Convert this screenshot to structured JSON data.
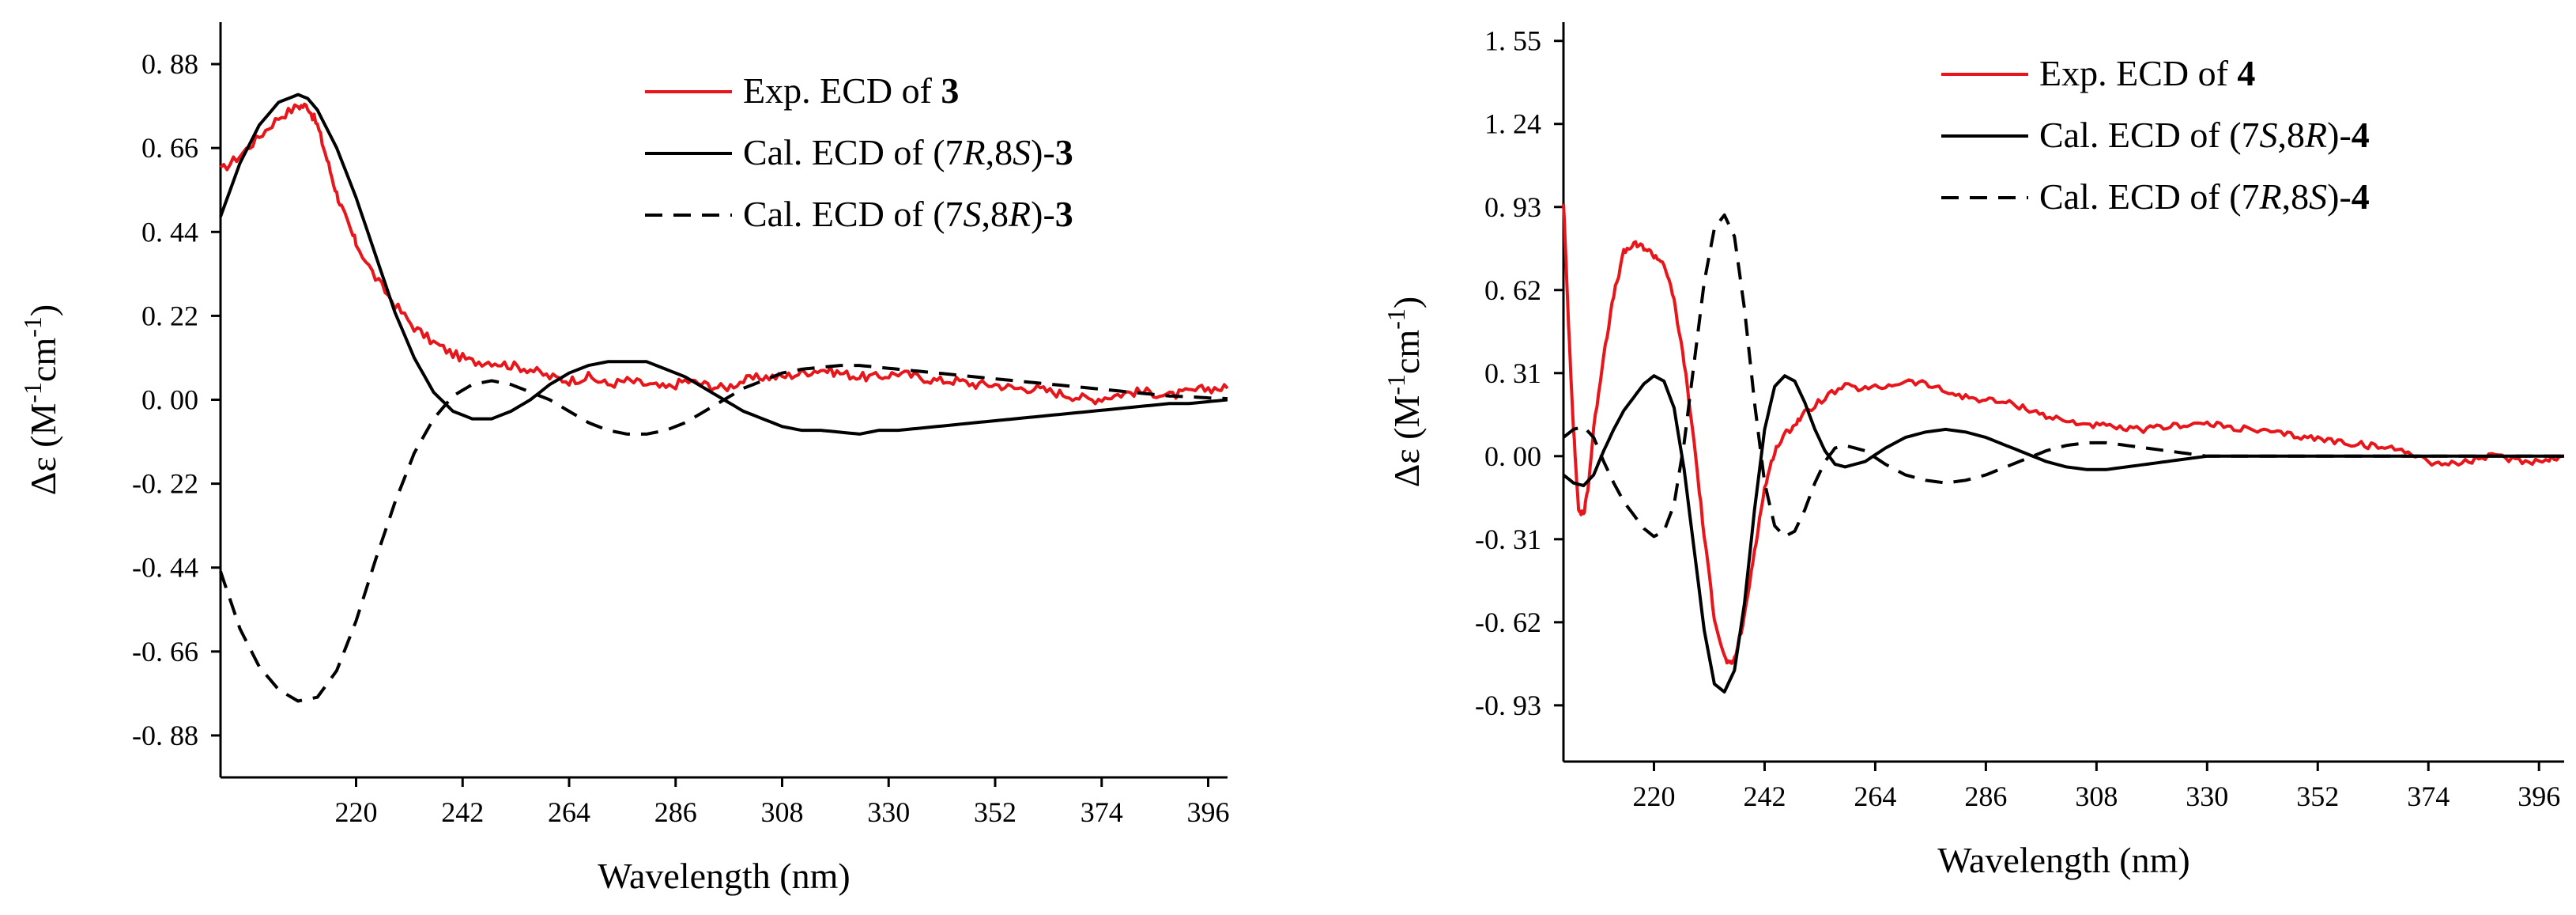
{
  "chart_data": [
    {
      "type": "line",
      "xlabel": "Wavelength (nm)",
      "ylabel": "Δε (M-1cm-1)",
      "xlim": [
        192,
        400
      ],
      "ylim": [
        -0.99,
        0.99
      ],
      "xticks": [
        220,
        242,
        264,
        286,
        308,
        330,
        352,
        374,
        396
      ],
      "xtick_labels": [
        "220",
        "242",
        "264",
        "286",
        "308",
        "330",
        "352",
        "374",
        "396"
      ],
      "yticks": [
        0.88,
        0.66,
        0.44,
        0.22,
        0.0,
        -0.22,
        -0.44,
        -0.66,
        -0.88
      ],
      "ytick_labels": [
        "0. 88",
        "0. 66",
        "0. 44",
        "0. 22",
        "0. 00",
        "-0. 22",
        "-0. 44",
        "-0. 66",
        "-0. 88"
      ],
      "legend_position": "top-right",
      "series": [
        {
          "name": "Exp. ECD of 3",
          "legend": [
            {
              "t": "Exp. ECD of "
            },
            {
              "t": "3",
              "b": true
            }
          ],
          "color": "#e8151b",
          "dash": "solid",
          "noise": 0.012,
          "x": [
            192,
            196,
            200,
            204,
            208,
            210,
            212,
            214,
            216,
            218,
            220,
            224,
            228,
            232,
            236,
            240,
            244,
            248,
            252,
            256,
            260,
            264,
            268,
            272,
            276,
            280,
            284,
            288,
            292,
            296,
            300,
            304,
            308,
            312,
            316,
            320,
            324,
            328,
            332,
            336,
            340,
            344,
            348,
            352,
            356,
            360,
            364,
            368,
            372,
            376,
            380,
            384,
            388,
            392,
            396,
            400
          ],
          "y": [
            0.6,
            0.64,
            0.69,
            0.74,
            0.77,
            0.77,
            0.72,
            0.63,
            0.54,
            0.47,
            0.41,
            0.32,
            0.25,
            0.19,
            0.15,
            0.12,
            0.1,
            0.1,
            0.09,
            0.08,
            0.06,
            0.05,
            0.06,
            0.04,
            0.05,
            0.04,
            0.03,
            0.05,
            0.04,
            0.03,
            0.05,
            0.06,
            0.06,
            0.07,
            0.08,
            0.07,
            0.06,
            0.06,
            0.07,
            0.06,
            0.05,
            0.05,
            0.04,
            0.04,
            0.03,
            0.03,
            0.02,
            0.01,
            0.0,
            0.01,
            0.02,
            0.02,
            0.01,
            0.02,
            0.03,
            0.03
          ]
        },
        {
          "name": "Cal. ECD of (7R,8S)-3",
          "legend": [
            {
              "t": "Cal. ECD of (7"
            },
            {
              "t": "R",
              "i": true
            },
            {
              "t": ",8"
            },
            {
              "t": "S",
              "i": true
            },
            {
              "t": ")-"
            },
            {
              "t": "3",
              "b": true
            }
          ],
          "color": "#000000",
          "dash": "solid",
          "noise": 0,
          "x": [
            192,
            196,
            200,
            204,
            208,
            210,
            212,
            216,
            220,
            224,
            228,
            232,
            236,
            240,
            244,
            248,
            252,
            256,
            260,
            264,
            268,
            272,
            276,
            280,
            284,
            288,
            292,
            296,
            300,
            304,
            308,
            312,
            316,
            320,
            324,
            328,
            332,
            336,
            340,
            344,
            348,
            352,
            356,
            360,
            364,
            368,
            372,
            376,
            380,
            384,
            388,
            392,
            396,
            400
          ],
          "y": [
            0.48,
            0.62,
            0.72,
            0.78,
            0.8,
            0.79,
            0.76,
            0.66,
            0.53,
            0.38,
            0.23,
            0.11,
            0.02,
            -0.03,
            -0.05,
            -0.05,
            -0.03,
            0.0,
            0.04,
            0.07,
            0.09,
            0.1,
            0.1,
            0.1,
            0.08,
            0.06,
            0.03,
            0.0,
            -0.03,
            -0.05,
            -0.07,
            -0.08,
            -0.08,
            -0.085,
            -0.09,
            -0.08,
            -0.08,
            -0.075,
            -0.07,
            -0.065,
            -0.06,
            -0.055,
            -0.05,
            -0.045,
            -0.04,
            -0.035,
            -0.03,
            -0.025,
            -0.02,
            -0.015,
            -0.01,
            -0.01,
            -0.005,
            0.0
          ]
        },
        {
          "name": "Cal. ECD of (7S,8R)-3",
          "legend": [
            {
              "t": "Cal. ECD of (7"
            },
            {
              "t": "S",
              "i": true
            },
            {
              "t": ",8"
            },
            {
              "t": "R",
              "i": true
            },
            {
              "t": ")-"
            },
            {
              "t": "3",
              "b": true
            }
          ],
          "color": "#000000",
          "dash": "dashed",
          "noise": 0,
          "x": [
            192,
            196,
            200,
            204,
            208,
            212,
            216,
            220,
            224,
            228,
            232,
            236,
            240,
            244,
            248,
            252,
            256,
            260,
            264,
            268,
            272,
            276,
            280,
            284,
            288,
            292,
            296,
            300,
            304,
            308,
            312,
            316,
            320,
            324,
            328,
            332,
            336,
            340,
            344,
            348,
            352,
            356,
            360,
            364,
            368,
            372,
            376,
            380,
            384,
            388,
            392,
            396,
            400
          ],
          "y": [
            -0.45,
            -0.6,
            -0.7,
            -0.76,
            -0.79,
            -0.78,
            -0.71,
            -0.58,
            -0.42,
            -0.27,
            -0.14,
            -0.05,
            0.01,
            0.04,
            0.05,
            0.04,
            0.02,
            0.0,
            -0.03,
            -0.06,
            -0.08,
            -0.09,
            -0.09,
            -0.08,
            -0.06,
            -0.03,
            0.0,
            0.03,
            0.05,
            0.07,
            0.08,
            0.085,
            0.09,
            0.09,
            0.085,
            0.08,
            0.075,
            0.07,
            0.065,
            0.06,
            0.055,
            0.05,
            0.045,
            0.04,
            0.035,
            0.03,
            0.025,
            0.02,
            0.015,
            0.01,
            0.008,
            0.005,
            0.003
          ]
        }
      ]
    },
    {
      "type": "line",
      "xlabel": "Wavelength (nm)",
      "ylabel": "Δε (M-1cm-1)",
      "xlim": [
        202,
        401
      ],
      "ylim": [
        -1.14,
        1.62
      ],
      "xticks": [
        220,
        242,
        264,
        286,
        308,
        330,
        352,
        374,
        396
      ],
      "xtick_labels": [
        "220",
        "242",
        "264",
        "286",
        "308",
        "330",
        "352",
        "374",
        "396"
      ],
      "yticks": [
        1.55,
        1.24,
        0.93,
        0.62,
        0.31,
        0.0,
        -0.31,
        -0.62,
        -0.93
      ],
      "ytick_labels": [
        "1. 55",
        "1. 24",
        "0. 93",
        "0. 62",
        "0. 31",
        "0. 00",
        "-0. 31",
        "-0. 62",
        "-0. 93"
      ],
      "legend_position": "top-right",
      "series": [
        {
          "name": "Exp. ECD of 4",
          "legend": [
            {
              "t": "Exp. ECD of "
            },
            {
              "t": "4",
              "b": true
            }
          ],
          "color": "#e8151b",
          "dash": "solid",
          "noise": 0.012,
          "x": [
            202,
            203,
            204,
            205,
            206,
            207,
            208,
            210,
            212,
            214,
            216,
            218,
            220,
            222,
            224,
            226,
            228,
            230,
            232,
            234,
            235,
            236,
            238,
            240,
            242,
            244,
            246,
            248,
            250,
            254,
            258,
            262,
            266,
            270,
            274,
            278,
            282,
            286,
            290,
            294,
            298,
            302,
            306,
            310,
            314,
            318,
            322,
            326,
            330,
            334,
            338,
            342,
            346,
            350,
            354,
            358,
            362,
            366,
            370,
            374,
            378,
            382,
            386,
            390,
            394,
            398,
            401
          ],
          "y": [
            0.95,
            0.5,
            0.1,
            -0.2,
            -0.22,
            -0.1,
            0.1,
            0.38,
            0.6,
            0.76,
            0.79,
            0.78,
            0.75,
            0.72,
            0.58,
            0.35,
            0.05,
            -0.3,
            -0.6,
            -0.75,
            -0.78,
            -0.76,
            -0.6,
            -0.35,
            -0.12,
            0.02,
            0.08,
            0.12,
            0.16,
            0.22,
            0.26,
            0.25,
            0.26,
            0.28,
            0.27,
            0.24,
            0.22,
            0.21,
            0.2,
            0.18,
            0.15,
            0.13,
            0.12,
            0.11,
            0.1,
            0.1,
            0.11,
            0.12,
            0.12,
            0.11,
            0.1,
            0.09,
            0.08,
            0.07,
            0.06,
            0.05,
            0.04,
            0.03,
            0.02,
            -0.02,
            -0.03,
            -0.02,
            0.0,
            -0.01,
            -0.02,
            -0.01,
            0.0
          ]
        },
        {
          "name": "Cal. ECD of (7S,8R)-4",
          "legend": [
            {
              "t": "Cal. ECD of (7"
            },
            {
              "t": "S",
              "i": true
            },
            {
              "t": ",8"
            },
            {
              "t": "R",
              "i": true
            },
            {
              "t": ")-"
            },
            {
              "t": "4",
              "b": true
            }
          ],
          "color": "#000000",
          "dash": "solid",
          "noise": 0,
          "x": [
            202,
            204,
            206,
            208,
            210,
            212,
            214,
            216,
            218,
            220,
            222,
            224,
            226,
            228,
            230,
            232,
            234,
            236,
            238,
            240,
            242,
            244,
            246,
            248,
            250,
            252,
            254,
            256,
            258,
            262,
            266,
            270,
            274,
            278,
            282,
            286,
            290,
            294,
            298,
            302,
            306,
            310,
            314,
            318,
            322,
            326,
            330,
            334,
            338,
            342,
            346,
            350,
            360,
            370,
            380,
            390,
            401
          ],
          "y": [
            -0.07,
            -0.1,
            -0.11,
            -0.07,
            0.02,
            0.1,
            0.17,
            0.22,
            0.27,
            0.3,
            0.28,
            0.18,
            -0.05,
            -0.35,
            -0.65,
            -0.85,
            -0.88,
            -0.8,
            -0.55,
            -0.2,
            0.1,
            0.26,
            0.3,
            0.28,
            0.2,
            0.1,
            0.02,
            -0.03,
            -0.04,
            -0.02,
            0.03,
            0.07,
            0.09,
            0.1,
            0.09,
            0.07,
            0.04,
            0.01,
            -0.02,
            -0.04,
            -0.05,
            -0.05,
            -0.04,
            -0.03,
            -0.02,
            -0.01,
            0.0,
            0.0,
            0.0,
            0.0,
            0.0,
            0.0,
            0.0,
            0.0,
            0.0,
            0.0,
            0.0
          ]
        },
        {
          "name": "Cal. ECD of (7R,8S)-4",
          "legend": [
            {
              "t": "Cal. ECD of (7"
            },
            {
              "t": "R",
              "i": true
            },
            {
              "t": ",8"
            },
            {
              "t": "S",
              "i": true
            },
            {
              "t": ")-"
            },
            {
              "t": "4",
              "b": true
            }
          ],
          "color": "#000000",
          "dash": "dashed",
          "noise": 0,
          "x": [
            202,
            204,
            206,
            208,
            210,
            212,
            214,
            216,
            218,
            220,
            222,
            224,
            226,
            228,
            230,
            232,
            234,
            236,
            238,
            240,
            242,
            244,
            246,
            248,
            250,
            252,
            254,
            256,
            258,
            262,
            266,
            270,
            274,
            278,
            282,
            286,
            290,
            294,
            298,
            302,
            306,
            310,
            314,
            318,
            322,
            326,
            330,
            334,
            338,
            342,
            346,
            350,
            360,
            370,
            380,
            390,
            401
          ],
          "y": [
            0.07,
            0.1,
            0.11,
            0.07,
            -0.02,
            -0.1,
            -0.17,
            -0.22,
            -0.27,
            -0.3,
            -0.28,
            -0.18,
            0.05,
            0.35,
            0.65,
            0.85,
            0.9,
            0.82,
            0.55,
            0.2,
            -0.1,
            -0.26,
            -0.3,
            -0.28,
            -0.2,
            -0.1,
            -0.02,
            0.03,
            0.04,
            0.02,
            -0.03,
            -0.07,
            -0.09,
            -0.1,
            -0.09,
            -0.07,
            -0.04,
            -0.01,
            0.02,
            0.04,
            0.05,
            0.05,
            0.04,
            0.03,
            0.02,
            0.01,
            0.0,
            0.0,
            0.0,
            0.0,
            0.0,
            0.0,
            0.0,
            0.0,
            0.0,
            0.0,
            0.0
          ]
        }
      ]
    }
  ]
}
